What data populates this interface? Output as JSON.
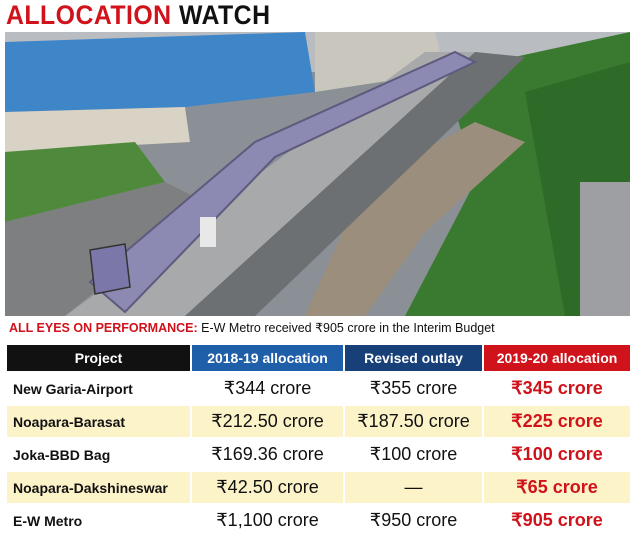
{
  "header": {
    "title_red": "ALLOCATION",
    "title_black": "WATCH"
  },
  "caption": {
    "lead": "ALL EYES ON PERFORMANCE:",
    "text": "E-W Metro received ₹905 crore in the Interim Budget"
  },
  "table": {
    "columns": [
      {
        "label": "Project",
        "color": "#111111"
      },
      {
        "label": "2018-19 allocation",
        "color": "#1f5ea8"
      },
      {
        "label": "Revised outlay",
        "color": "#173f78"
      },
      {
        "label": "2019-20 allocation",
        "color": "#d0121b"
      }
    ],
    "rows": [
      [
        "New Garia-Airport",
        "₹344 crore",
        "₹355 crore",
        "₹345 crore"
      ],
      [
        "Noapara-Barasat",
        "₹212.50 crore",
        "₹187.50 crore",
        "₹225 crore"
      ],
      [
        "Joka-BBD Bag",
        "₹169.36 crore",
        "₹100 crore",
        "₹100 crore"
      ],
      [
        "Noapara-Dakshineswar",
        "₹42.50 crore",
        "—",
        "₹65 crore"
      ],
      [
        "E-W Metro",
        "₹1,100 crore",
        "₹950 crore",
        "₹905 crore"
      ]
    ]
  }
}
